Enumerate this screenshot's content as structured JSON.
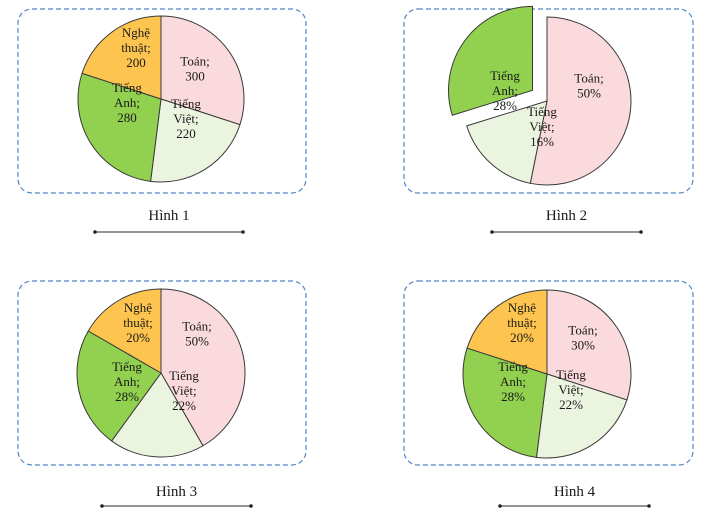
{
  "colors": {
    "Toán": "#fadadd",
    "Tiếng Việt": "#ebf4df",
    "Tiếng Anh": "#92d050",
    "Nghệ thuật": "#fdc54f",
    "stroke": "#3a3a3a",
    "frame": "#4f86c6",
    "caption_line": "#555555"
  },
  "chart_data": [
    {
      "type": "pie",
      "title": "Hình 1",
      "unit": "",
      "slices": [
        {
          "name": "Toán",
          "value": 300,
          "label": [
            "Toán;",
            "300"
          ]
        },
        {
          "name": "Tiếng Việt",
          "value": 220,
          "label": [
            "Tiếng",
            "Việt;",
            "220"
          ]
        },
        {
          "name": "Tiếng Anh",
          "value": 280,
          "label": [
            "Tiếng",
            "Anh;",
            "280"
          ]
        },
        {
          "name": "Nghệ thuật",
          "value": 200,
          "label": [
            "Nghệ",
            "thuật;",
            "200"
          ]
        }
      ]
    },
    {
      "type": "pie",
      "title": "Hình 2",
      "unit": "%",
      "exploded": "Tiếng Anh",
      "slices": [
        {
          "name": "Toán",
          "value": 50,
          "label": [
            "Toán;",
            "50%"
          ]
        },
        {
          "name": "Tiếng Việt",
          "value": 16,
          "label": [
            "Tiếng",
            "Việt;",
            "16%"
          ]
        },
        {
          "name": "Tiếng Anh",
          "value": 28,
          "label": [
            "Tiếng",
            "Anh;",
            "28%"
          ]
        }
      ]
    },
    {
      "type": "pie",
      "title": "Hình 3",
      "unit": "%",
      "slices": [
        {
          "name": "Toán",
          "value": 50,
          "label": [
            "Toán;",
            "50%"
          ]
        },
        {
          "name": "Tiếng Việt",
          "value": 22,
          "label": [
            "Tiếng",
            "Việt;",
            "22%"
          ]
        },
        {
          "name": "Tiếng Anh",
          "value": 28,
          "label": [
            "Tiếng",
            "Anh;",
            "28%"
          ]
        },
        {
          "name": "Nghệ thuật",
          "value": 20,
          "label": [
            "Nghệ",
            "thuật;",
            "20%"
          ]
        }
      ]
    },
    {
      "type": "pie",
      "title": "Hình 4",
      "unit": "%",
      "slices": [
        {
          "name": "Toán",
          "value": 30,
          "label": [
            "Toán;",
            "30%"
          ]
        },
        {
          "name": "Tiếng Việt",
          "value": 22,
          "label": [
            "Tiếng",
            "Việt;",
            "22%"
          ]
        },
        {
          "name": "Tiếng Anh",
          "value": 28,
          "label": [
            "Tiếng",
            "Anh;",
            "28%"
          ]
        },
        {
          "name": "Nghệ thuật",
          "value": 20,
          "label": [
            "Nghệ",
            "thuật;",
            "20%"
          ]
        }
      ]
    }
  ]
}
